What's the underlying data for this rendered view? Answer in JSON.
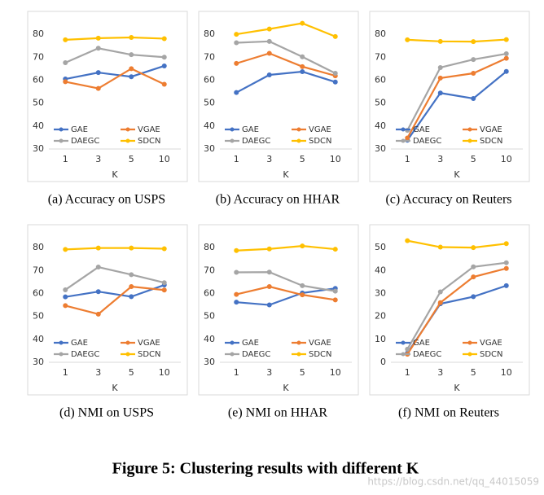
{
  "chart_data": [
    {
      "type": "line",
      "title": "(a)  Accuracy on USPS",
      "x_label": "K",
      "categories": [
        "1",
        "3",
        "5",
        "10"
      ],
      "ylim": [
        30,
        85
      ],
      "yticks": [
        30,
        40,
        50,
        60,
        70,
        80
      ],
      "grid": false,
      "legend": "bottom",
      "series": [
        {
          "name": "GAE",
          "color": "#4472c4",
          "values": [
            60.5,
            63.3,
            61.5,
            66.2
          ]
        },
        {
          "name": "VGAE",
          "color": "#ed7d31",
          "values": [
            59.3,
            56.4,
            65.0,
            58.2
          ]
        },
        {
          "name": "DAEGC",
          "color": "#a5a5a5",
          "values": [
            67.6,
            73.9,
            71.1,
            70.0
          ]
        },
        {
          "name": "SDCN",
          "color": "#ffc000",
          "values": [
            77.6,
            78.3,
            78.6,
            78.1
          ]
        }
      ]
    },
    {
      "type": "line",
      "title": "(b)  Accuracy on HHAR",
      "x_label": "K",
      "categories": [
        "1",
        "3",
        "5",
        "10"
      ],
      "ylim": [
        30,
        85
      ],
      "yticks": [
        30,
        40,
        50,
        60,
        70,
        80
      ],
      "grid": false,
      "legend": "bottom",
      "series": [
        {
          "name": "GAE",
          "color": "#4472c4",
          "values": [
            54.6,
            62.3,
            63.7,
            59.2
          ]
        },
        {
          "name": "VGAE",
          "color": "#ed7d31",
          "values": [
            67.3,
            71.7,
            65.9,
            61.9
          ]
        },
        {
          "name": "DAEGC",
          "color": "#a5a5a5",
          "values": [
            76.3,
            76.9,
            70.2,
            63.0
          ]
        },
        {
          "name": "SDCN",
          "color": "#ffc000",
          "values": [
            80.0,
            82.3,
            84.8,
            79.0
          ]
        }
      ]
    },
    {
      "type": "line",
      "title": "(c)  Accuracy on Reuters",
      "x_label": "K",
      "categories": [
        "1",
        "3",
        "5",
        "10"
      ],
      "ylim": [
        30,
        85
      ],
      "yticks": [
        30,
        40,
        50,
        60,
        70,
        80
      ],
      "grid": false,
      "legend": "bottom",
      "series": [
        {
          "name": "GAE",
          "color": "#4472c4",
          "values": [
            33.8,
            54.4,
            52.0,
            63.8
          ]
        },
        {
          "name": "VGAE",
          "color": "#ed7d31",
          "values": [
            34.8,
            60.9,
            63.0,
            69.5
          ]
        },
        {
          "name": "DAEGC",
          "color": "#a5a5a5",
          "values": [
            38.1,
            65.5,
            69.0,
            71.5
          ]
        },
        {
          "name": "SDCN",
          "color": "#ffc000",
          "values": [
            77.6,
            76.9,
            76.8,
            77.7
          ]
        }
      ]
    },
    {
      "type": "line",
      "title": "(d)  NMI on USPS",
      "x_label": "K",
      "categories": [
        "1",
        "3",
        "5",
        "10"
      ],
      "ylim": [
        30,
        85
      ],
      "yticks": [
        30,
        40,
        50,
        60,
        70,
        80
      ],
      "grid": false,
      "legend": "bottom",
      "series": [
        {
          "name": "GAE",
          "color": "#4472c4",
          "values": [
            58.5,
            60.8,
            58.6,
            63.7
          ]
        },
        {
          "name": "VGAE",
          "color": "#ed7d31",
          "values": [
            54.7,
            51.0,
            63.0,
            61.5
          ]
        },
        {
          "name": "DAEGC",
          "color": "#a5a5a5",
          "values": [
            61.6,
            71.5,
            68.2,
            64.7
          ]
        },
        {
          "name": "SDCN",
          "color": "#ffc000",
          "values": [
            79.2,
            79.8,
            79.8,
            79.5
          ]
        }
      ]
    },
    {
      "type": "line",
      "title": "(e)  NMI on HHAR",
      "x_label": "K",
      "categories": [
        "1",
        "3",
        "5",
        "10"
      ],
      "ylim": [
        30,
        85
      ],
      "yticks": [
        30,
        40,
        50,
        60,
        70,
        80
      ],
      "grid": false,
      "legend": "bottom",
      "series": [
        {
          "name": "GAE",
          "color": "#4472c4",
          "values": [
            56.2,
            55.0,
            60.2,
            62.2
          ]
        },
        {
          "name": "VGAE",
          "color": "#ed7d31",
          "values": [
            59.6,
            63.0,
            59.4,
            57.2
          ]
        },
        {
          "name": "DAEGC",
          "color": "#a5a5a5",
          "values": [
            69.2,
            69.3,
            63.4,
            61.0
          ]
        },
        {
          "name": "SDCN",
          "color": "#ffc000",
          "values": [
            78.7,
            79.4,
            80.7,
            79.3
          ]
        }
      ]
    },
    {
      "type": "line",
      "title": "(f)  NMI on Reuters",
      "x_label": "K",
      "categories": [
        "1",
        "3",
        "5",
        "10"
      ],
      "ylim": [
        0,
        55
      ],
      "yticks": [
        0,
        10,
        20,
        30,
        40,
        50
      ],
      "grid": false,
      "legend": "bottom",
      "series": [
        {
          "name": "GAE",
          "color": "#4472c4",
          "values": [
            4.0,
            25.5,
            28.6,
            33.4
          ]
        },
        {
          "name": "VGAE",
          "color": "#ed7d31",
          "values": [
            3.5,
            26.0,
            37.2,
            40.9
          ]
        },
        {
          "name": "DAEGC",
          "color": "#a5a5a5",
          "values": [
            5.7,
            30.7,
            41.6,
            43.4
          ]
        },
        {
          "name": "SDCN",
          "color": "#ffc000",
          "values": [
            53.0,
            50.2,
            50.0,
            51.7
          ]
        }
      ]
    }
  ],
  "figure_caption": "Figure 5: Clustering results with different K",
  "watermark": "https://blog.csdn.net/qq_44015059"
}
